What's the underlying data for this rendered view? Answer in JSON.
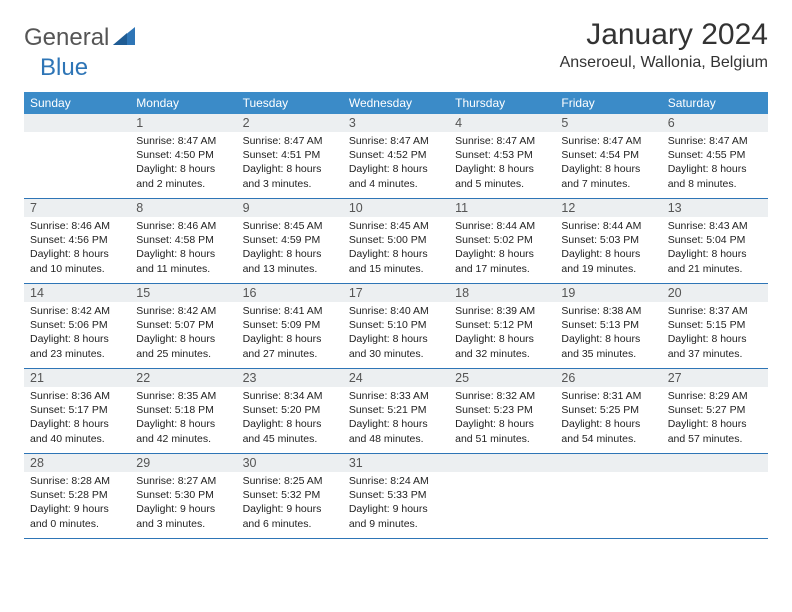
{
  "logo": {
    "main": "General",
    "accent": "Blue"
  },
  "title": "January 2024",
  "location": "Anseroeul, Wallonia, Belgium",
  "colors": {
    "header_bg": "#3b8bc8",
    "border": "#2e75b6",
    "daynum_bg": "#eceff1",
    "text": "#222222",
    "title_text": "#333333"
  },
  "day_headers": [
    "Sunday",
    "Monday",
    "Tuesday",
    "Wednesday",
    "Thursday",
    "Friday",
    "Saturday"
  ],
  "weeks": [
    [
      {
        "n": "",
        "sr": "",
        "ss": "",
        "dl": ""
      },
      {
        "n": "1",
        "sr": "Sunrise: 8:47 AM",
        "ss": "Sunset: 4:50 PM",
        "dl": "Daylight: 8 hours and 2 minutes."
      },
      {
        "n": "2",
        "sr": "Sunrise: 8:47 AM",
        "ss": "Sunset: 4:51 PM",
        "dl": "Daylight: 8 hours and 3 minutes."
      },
      {
        "n": "3",
        "sr": "Sunrise: 8:47 AM",
        "ss": "Sunset: 4:52 PM",
        "dl": "Daylight: 8 hours and 4 minutes."
      },
      {
        "n": "4",
        "sr": "Sunrise: 8:47 AM",
        "ss": "Sunset: 4:53 PM",
        "dl": "Daylight: 8 hours and 5 minutes."
      },
      {
        "n": "5",
        "sr": "Sunrise: 8:47 AM",
        "ss": "Sunset: 4:54 PM",
        "dl": "Daylight: 8 hours and 7 minutes."
      },
      {
        "n": "6",
        "sr": "Sunrise: 8:47 AM",
        "ss": "Sunset: 4:55 PM",
        "dl": "Daylight: 8 hours and 8 minutes."
      }
    ],
    [
      {
        "n": "7",
        "sr": "Sunrise: 8:46 AM",
        "ss": "Sunset: 4:56 PM",
        "dl": "Daylight: 8 hours and 10 minutes."
      },
      {
        "n": "8",
        "sr": "Sunrise: 8:46 AM",
        "ss": "Sunset: 4:58 PM",
        "dl": "Daylight: 8 hours and 11 minutes."
      },
      {
        "n": "9",
        "sr": "Sunrise: 8:45 AM",
        "ss": "Sunset: 4:59 PM",
        "dl": "Daylight: 8 hours and 13 minutes."
      },
      {
        "n": "10",
        "sr": "Sunrise: 8:45 AM",
        "ss": "Sunset: 5:00 PM",
        "dl": "Daylight: 8 hours and 15 minutes."
      },
      {
        "n": "11",
        "sr": "Sunrise: 8:44 AM",
        "ss": "Sunset: 5:02 PM",
        "dl": "Daylight: 8 hours and 17 minutes."
      },
      {
        "n": "12",
        "sr": "Sunrise: 8:44 AM",
        "ss": "Sunset: 5:03 PM",
        "dl": "Daylight: 8 hours and 19 minutes."
      },
      {
        "n": "13",
        "sr": "Sunrise: 8:43 AM",
        "ss": "Sunset: 5:04 PM",
        "dl": "Daylight: 8 hours and 21 minutes."
      }
    ],
    [
      {
        "n": "14",
        "sr": "Sunrise: 8:42 AM",
        "ss": "Sunset: 5:06 PM",
        "dl": "Daylight: 8 hours and 23 minutes."
      },
      {
        "n": "15",
        "sr": "Sunrise: 8:42 AM",
        "ss": "Sunset: 5:07 PM",
        "dl": "Daylight: 8 hours and 25 minutes."
      },
      {
        "n": "16",
        "sr": "Sunrise: 8:41 AM",
        "ss": "Sunset: 5:09 PM",
        "dl": "Daylight: 8 hours and 27 minutes."
      },
      {
        "n": "17",
        "sr": "Sunrise: 8:40 AM",
        "ss": "Sunset: 5:10 PM",
        "dl": "Daylight: 8 hours and 30 minutes."
      },
      {
        "n": "18",
        "sr": "Sunrise: 8:39 AM",
        "ss": "Sunset: 5:12 PM",
        "dl": "Daylight: 8 hours and 32 minutes."
      },
      {
        "n": "19",
        "sr": "Sunrise: 8:38 AM",
        "ss": "Sunset: 5:13 PM",
        "dl": "Daylight: 8 hours and 35 minutes."
      },
      {
        "n": "20",
        "sr": "Sunrise: 8:37 AM",
        "ss": "Sunset: 5:15 PM",
        "dl": "Daylight: 8 hours and 37 minutes."
      }
    ],
    [
      {
        "n": "21",
        "sr": "Sunrise: 8:36 AM",
        "ss": "Sunset: 5:17 PM",
        "dl": "Daylight: 8 hours and 40 minutes."
      },
      {
        "n": "22",
        "sr": "Sunrise: 8:35 AM",
        "ss": "Sunset: 5:18 PM",
        "dl": "Daylight: 8 hours and 42 minutes."
      },
      {
        "n": "23",
        "sr": "Sunrise: 8:34 AM",
        "ss": "Sunset: 5:20 PM",
        "dl": "Daylight: 8 hours and 45 minutes."
      },
      {
        "n": "24",
        "sr": "Sunrise: 8:33 AM",
        "ss": "Sunset: 5:21 PM",
        "dl": "Daylight: 8 hours and 48 minutes."
      },
      {
        "n": "25",
        "sr": "Sunrise: 8:32 AM",
        "ss": "Sunset: 5:23 PM",
        "dl": "Daylight: 8 hours and 51 minutes."
      },
      {
        "n": "26",
        "sr": "Sunrise: 8:31 AM",
        "ss": "Sunset: 5:25 PM",
        "dl": "Daylight: 8 hours and 54 minutes."
      },
      {
        "n": "27",
        "sr": "Sunrise: 8:29 AM",
        "ss": "Sunset: 5:27 PM",
        "dl": "Daylight: 8 hours and 57 minutes."
      }
    ],
    [
      {
        "n": "28",
        "sr": "Sunrise: 8:28 AM",
        "ss": "Sunset: 5:28 PM",
        "dl": "Daylight: 9 hours and 0 minutes."
      },
      {
        "n": "29",
        "sr": "Sunrise: 8:27 AM",
        "ss": "Sunset: 5:30 PM",
        "dl": "Daylight: 9 hours and 3 minutes."
      },
      {
        "n": "30",
        "sr": "Sunrise: 8:25 AM",
        "ss": "Sunset: 5:32 PM",
        "dl": "Daylight: 9 hours and 6 minutes."
      },
      {
        "n": "31",
        "sr": "Sunrise: 8:24 AM",
        "ss": "Sunset: 5:33 PM",
        "dl": "Daylight: 9 hours and 9 minutes."
      },
      {
        "n": "",
        "sr": "",
        "ss": "",
        "dl": ""
      },
      {
        "n": "",
        "sr": "",
        "ss": "",
        "dl": ""
      },
      {
        "n": "",
        "sr": "",
        "ss": "",
        "dl": ""
      }
    ]
  ]
}
